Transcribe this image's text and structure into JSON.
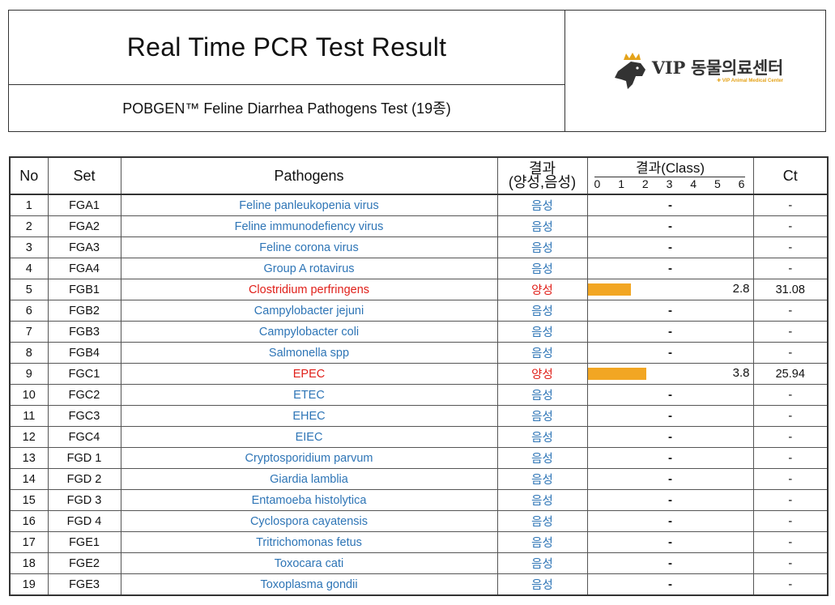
{
  "header": {
    "title": "Real Time PCR Test Result",
    "subtitle": "POBGEN™ Feline Diarrhea Pathogens Test (19종)",
    "logo_text": "VIP 동물의료센터",
    "logo_subtext": "✚ VIP Animal Medical Center"
  },
  "colors": {
    "negative": "#2e75b6",
    "positive": "#e0201a",
    "bar": "#f2a623"
  },
  "table": {
    "headers": {
      "no": "No",
      "set": "Set",
      "pathogens": "Pathogens",
      "result_line1": "결과",
      "result_line2": "(양성,음성)",
      "class": "결과(Class)",
      "ct": "Ct"
    },
    "class_scale": [
      "0",
      "1",
      "2",
      "3",
      "4",
      "5",
      "6"
    ],
    "rows": [
      {
        "no": "1",
        "set": "FGA1",
        "pathogen": "Feline panleukopenia virus",
        "result": "음성",
        "positive": false,
        "class": null,
        "class_text": "-",
        "ct": "-"
      },
      {
        "no": "2",
        "set": "FGA2",
        "pathogen": "Feline immunodefiency virus",
        "result": "음성",
        "positive": false,
        "class": null,
        "class_text": "-",
        "ct": "-"
      },
      {
        "no": "3",
        "set": "FGA3",
        "pathogen": "Feline corona virus",
        "result": "음성",
        "positive": false,
        "class": null,
        "class_text": "-",
        "ct": "-"
      },
      {
        "no": "4",
        "set": "FGA4",
        "pathogen": "Group A rotavirus",
        "result": "음성",
        "positive": false,
        "class": null,
        "class_text": "-",
        "ct": "-"
      },
      {
        "no": "5",
        "set": "FGB1",
        "pathogen": "Clostridium perfringens",
        "result": "양성",
        "positive": true,
        "class": 2.8,
        "class_text": "2.8",
        "ct": "31.08"
      },
      {
        "no": "6",
        "set": "FGB2",
        "pathogen": "Campylobacter jejuni",
        "result": "음성",
        "positive": false,
        "class": null,
        "class_text": "-",
        "ct": "-"
      },
      {
        "no": "7",
        "set": "FGB3",
        "pathogen": "Campylobacter coli",
        "result": "음성",
        "positive": false,
        "class": null,
        "class_text": "-",
        "ct": "-"
      },
      {
        "no": "8",
        "set": "FGB4",
        "pathogen": "Salmonella spp",
        "result": "음성",
        "positive": false,
        "class": null,
        "class_text": "-",
        "ct": "-"
      },
      {
        "no": "9",
        "set": "FGC1",
        "pathogen": "EPEC",
        "result": "양성",
        "positive": true,
        "class": 3.8,
        "class_text": "3.8",
        "ct": "25.94"
      },
      {
        "no": "10",
        "set": "FGC2",
        "pathogen": "ETEC",
        "result": "음성",
        "positive": false,
        "class": null,
        "class_text": "-",
        "ct": "-"
      },
      {
        "no": "11",
        "set": "FGC3",
        "pathogen": "EHEC",
        "result": "음성",
        "positive": false,
        "class": null,
        "class_text": "-",
        "ct": "-"
      },
      {
        "no": "12",
        "set": "FGC4",
        "pathogen": "EIEC",
        "result": "음성",
        "positive": false,
        "class": null,
        "class_text": "-",
        "ct": "-"
      },
      {
        "no": "13",
        "set": "FGD 1",
        "pathogen": "Cryptosporidium parvum",
        "result": "음성",
        "positive": false,
        "class": null,
        "class_text": "-",
        "ct": "-"
      },
      {
        "no": "14",
        "set": "FGD 2",
        "pathogen": "Giardia lamblia",
        "result": "음성",
        "positive": false,
        "class": null,
        "class_text": "-",
        "ct": "-"
      },
      {
        "no": "15",
        "set": "FGD 3",
        "pathogen": "Entamoeba histolytica",
        "result": "음성",
        "positive": false,
        "class": null,
        "class_text": "-",
        "ct": "-"
      },
      {
        "no": "16",
        "set": "FGD 4",
        "pathogen": "Cyclospora cayatensis",
        "result": "음성",
        "positive": false,
        "class": null,
        "class_text": "-",
        "ct": "-"
      },
      {
        "no": "17",
        "set": "FGE1",
        "pathogen": "Tritrichomonas fetus",
        "result": "음성",
        "positive": false,
        "class": null,
        "class_text": "-",
        "ct": "-"
      },
      {
        "no": "18",
        "set": "FGE2",
        "pathogen": "Toxocara cati",
        "result": "음성",
        "positive": false,
        "class": null,
        "class_text": "-",
        "ct": "-"
      },
      {
        "no": "19",
        "set": "FGE3",
        "pathogen": "Toxoplasma gondii",
        "result": "음성",
        "positive": false,
        "class": null,
        "class_text": "-",
        "ct": "-"
      }
    ]
  }
}
